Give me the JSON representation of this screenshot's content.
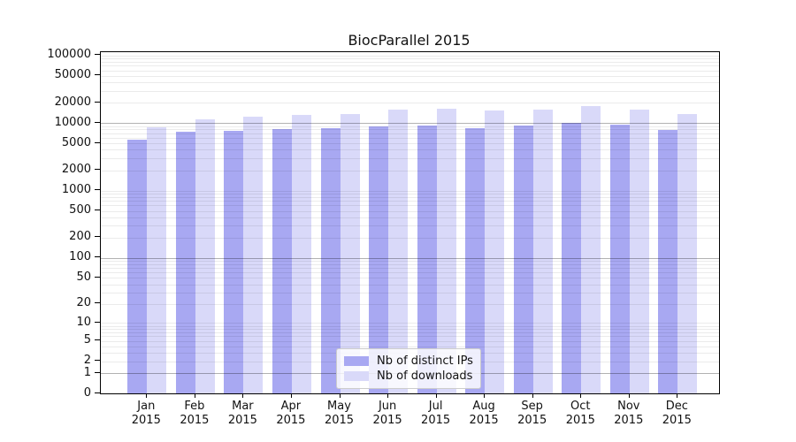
{
  "chart_data": {
    "type": "bar",
    "title": "BiocParallel 2015",
    "categories": [
      "Jan",
      "Feb",
      "Mar",
      "Apr",
      "May",
      "Jun",
      "Jul",
      "Aug",
      "Sep",
      "Oct",
      "Nov",
      "Dec"
    ],
    "category_year": "2015",
    "series": [
      {
        "name": "Nb of distinct IPs",
        "color": "#a8a8f2",
        "values": [
          5600,
          7400,
          7600,
          8000,
          8400,
          8750,
          9200,
          8250,
          9200,
          10100,
          9300,
          7900
        ]
      },
      {
        "name": "Nb of downloads",
        "color": "#d9d9f9",
        "values": [
          8600,
          11400,
          12400,
          13000,
          13400,
          15600,
          16200,
          15100,
          15900,
          17600,
          15600,
          13400
        ]
      }
    ],
    "y_tick_labels": [
      0,
      1,
      2,
      5,
      10,
      20,
      50,
      100,
      200,
      500,
      1000,
      2000,
      5000,
      10000,
      20000,
      50000,
      100000
    ],
    "scale": "log10(value+1)",
    "major_grid_values": [
      1,
      100,
      10000
    ],
    "grid": true,
    "legend_position": "bottom-center",
    "ylim": [
      0,
      110000
    ],
    "xlabel": "",
    "ylabel": ""
  },
  "colors": {
    "background": "#ffffff",
    "axis": "#000000",
    "major_grid": "rgba(0,0,0,0.30)",
    "minor_grid": "rgba(0,0,0,0.08)",
    "text": "#111111"
  }
}
